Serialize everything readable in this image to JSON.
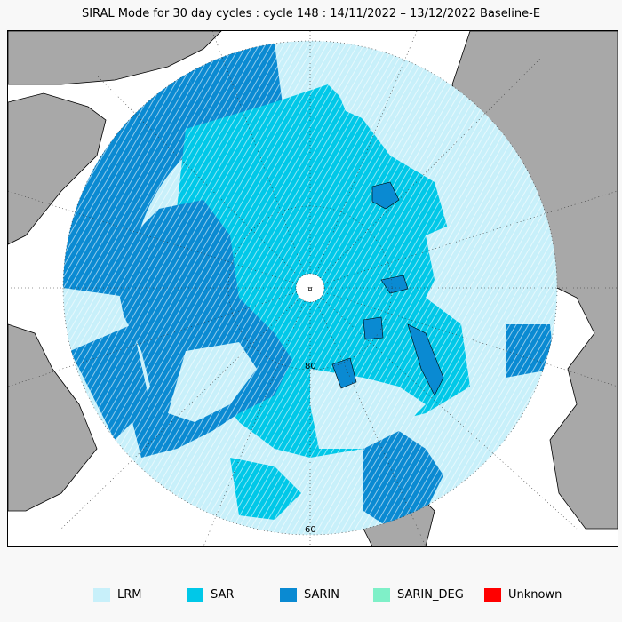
{
  "title": "SIRAL Mode for 30 day cycles : cycle 148 : 14/11/2022 – 13/12/2022 Baseline-E",
  "map": {
    "projection": "north-polar-stereographic",
    "latitude_labels": [
      "80",
      "60"
    ],
    "colors": {
      "background": "#ffffff",
      "land": "#a8a8a8",
      "coastline": "#000000",
      "graticule": "#333333"
    }
  },
  "legend": [
    {
      "label": "LRM",
      "color": "#c8f0fa"
    },
    {
      "label": "SAR",
      "color": "#00c8e8"
    },
    {
      "label": "SARIN",
      "color": "#0a8ad2"
    },
    {
      "label": "SARIN_DEG",
      "color": "#7ff0c8"
    },
    {
      "label": "Unknown",
      "color": "#ff0000"
    }
  ]
}
